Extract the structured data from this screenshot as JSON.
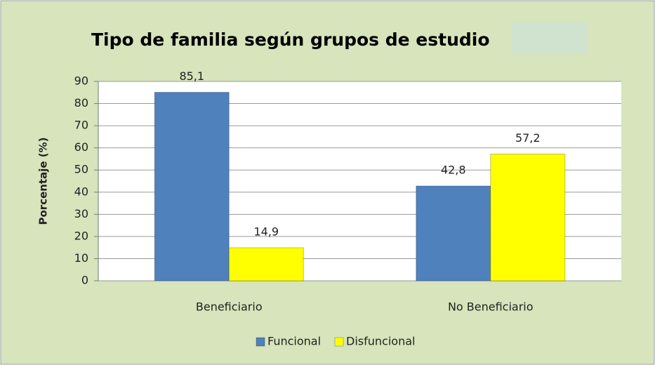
{
  "chart_data": {
    "type": "bar",
    "title": "Tipo de familia según grupos de estudio",
    "y_label": "Porcentaje (%)",
    "categories": [
      "Beneficiario",
      "No Beneficiario"
    ],
    "series": [
      {
        "name": "Funcional",
        "color": "#4f81bd",
        "values": [
          85.1,
          42.8
        ],
        "value_labels": [
          "85,1",
          "42,8"
        ]
      },
      {
        "name": "Disfuncional",
        "color": "#ffff00",
        "values": [
          14.9,
          57.2
        ],
        "value_labels": [
          "14,9",
          "57,2"
        ]
      }
    ],
    "ylim": [
      0,
      90
    ],
    "yticks": [
      0,
      10,
      20,
      30,
      40,
      50,
      60,
      70,
      80,
      90
    ],
    "grid": true,
    "legend": "bottom"
  }
}
